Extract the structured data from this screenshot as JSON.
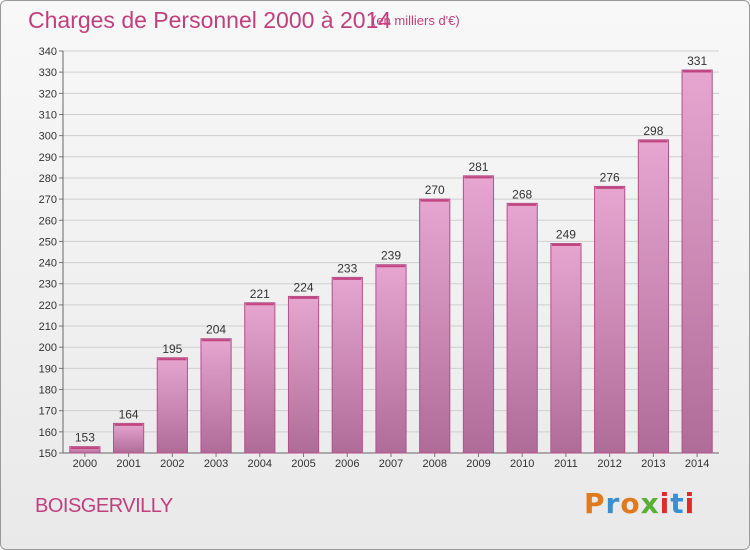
{
  "header": {
    "title": "Charges de Personnel 2000 à 2014",
    "subtitle": "(en milliers d'€)"
  },
  "footer": {
    "commune": "BOISGERVILLY",
    "logo_text": "Proxiti"
  },
  "colors": {
    "title": "#c0407e",
    "bar_top": "#e6a6d0",
    "bar_bottom": "#b06c98",
    "logo": [
      "#e07a1f",
      "#3a8fd0",
      "#e07a1f",
      "#58b035",
      "#e02a2a",
      "#3a8fd0",
      "#e02a2a"
    ]
  },
  "chart_data": {
    "type": "bar",
    "categories": [
      "2000",
      "2001",
      "2002",
      "2003",
      "2004",
      "2005",
      "2006",
      "2007",
      "2008",
      "2009",
      "2010",
      "2011",
      "2012",
      "2013",
      "2014"
    ],
    "values": [
      153,
      164,
      195,
      204,
      221,
      224,
      233,
      239,
      270,
      281,
      268,
      249,
      276,
      298,
      331
    ],
    "title": "Charges de Personnel 2000 à 2014",
    "subtitle": "(en milliers d'€)",
    "xlabel": "",
    "ylabel": "",
    "ylim": [
      150,
      340
    ],
    "yticks": [
      150,
      160,
      170,
      180,
      190,
      200,
      210,
      220,
      230,
      240,
      250,
      260,
      270,
      280,
      290,
      300,
      310,
      320,
      330,
      340
    ],
    "grid": true,
    "data_labels": true
  }
}
